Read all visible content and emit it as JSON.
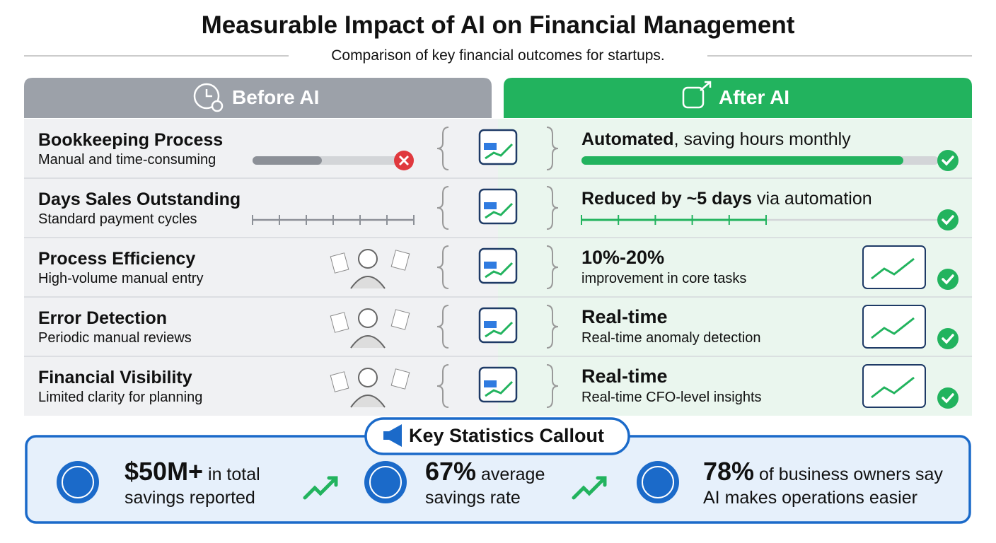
{
  "header": {
    "title": "Measurable Impact of AI on Financial Management",
    "subtitle": "Comparison of key financial outcomes for startups."
  },
  "columns": {
    "before": "Before AI",
    "after": "After AI"
  },
  "rows": [
    {
      "label": "Bookkeeping Process",
      "before": "Manual and time-consuming",
      "after": {
        "strong": "Automated",
        "rest": ", saving hours monthly"
      }
    },
    {
      "label": "Days Sales Outstanding",
      "before": "Standard payment cycles",
      "after": {
        "strong": "Reduced by ~5 days",
        "rest": " via automation"
      }
    },
    {
      "label": "Process Efficiency",
      "before": "High-volume manual entry",
      "after": {
        "strong": "10%-20%",
        "sub": "improvement in core tasks"
      }
    },
    {
      "label": "Error Detection",
      "before": "Periodic manual reviews",
      "after": {
        "strong": "Real-time",
        "sub": "Real-time anomaly detection"
      }
    },
    {
      "label": "Financial Visibility",
      "before": "Limited clarity for planning",
      "after": {
        "strong": "Real-time",
        "sub": "Real-time CFO-level insights"
      }
    }
  ],
  "callout": {
    "title": "Key Statistics Callout",
    "stats": [
      {
        "strong": "$50M+",
        "rest": " in total savings reported"
      },
      {
        "strong": "67%",
        "rest": " average savings rate"
      },
      {
        "strong": "78%",
        "rest": " of business owners say AI makes operations easier"
      }
    ]
  }
}
